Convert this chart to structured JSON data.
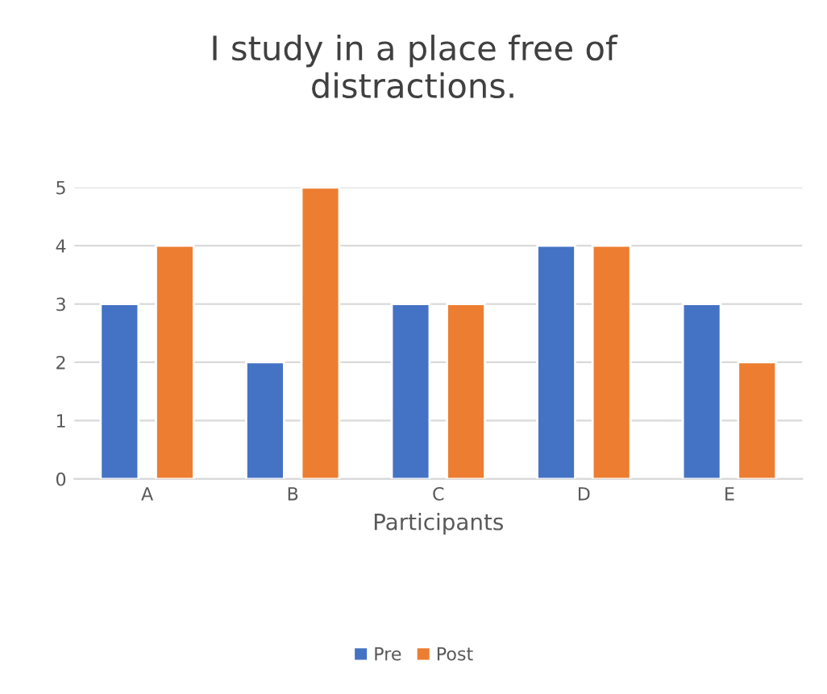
{
  "chart_data": {
    "type": "bar",
    "title": "I study in a place free of\ndistractions.",
    "xlabel": "Participants",
    "categories": [
      "A",
      "B",
      "C",
      "D",
      "E"
    ],
    "series": [
      {
        "name": "Pre",
        "color": "#4472c4",
        "values": [
          3,
          2,
          3,
          4,
          3
        ]
      },
      {
        "name": "Post",
        "color": "#ed7d31",
        "values": [
          4,
          5,
          3,
          4,
          2
        ]
      }
    ],
    "ylim": [
      0,
      5
    ],
    "yticks": [
      0,
      1,
      2,
      3,
      4,
      5
    ],
    "grid": "y",
    "legend": "bottom"
  }
}
